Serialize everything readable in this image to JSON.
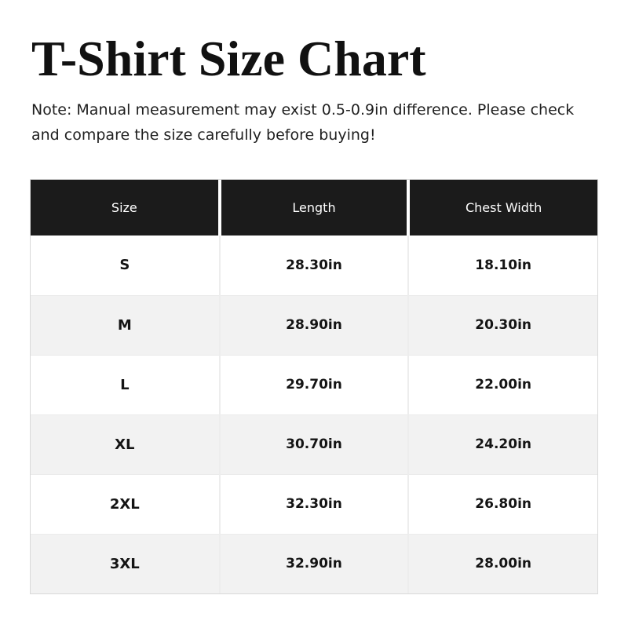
{
  "header": {
    "title": "T-Shirt Size Chart",
    "note": "Note: Manual measurement may exist 0.5-0.9in difference. Please check and compare the size carefully before buying!"
  },
  "table": {
    "columns": [
      "Size",
      "Length",
      "Chest Width"
    ],
    "rows": [
      [
        "S",
        "28.30in",
        "18.10in"
      ],
      [
        "M",
        "28.90in",
        "20.30in"
      ],
      [
        "L",
        "29.70in",
        "22.00in"
      ],
      [
        "XL",
        "30.70in",
        "24.20in"
      ],
      [
        "2XL",
        "32.30in",
        "26.80in"
      ],
      [
        "3XL",
        "32.90in",
        "28.00in"
      ]
    ]
  },
  "chart_data": {
    "type": "table",
    "title": "T-Shirt Size Chart",
    "note": "Note: Manual measurement may exist 0.5-0.9in difference. Please check and compare the size carefully before buying!",
    "columns": [
      "Size",
      "Length",
      "Chest Width"
    ],
    "rows": [
      {
        "size": "S",
        "length_in": 28.3,
        "chest_width_in": 18.1
      },
      {
        "size": "M",
        "length_in": 28.9,
        "chest_width_in": 20.3
      },
      {
        "size": "L",
        "length_in": 29.7,
        "chest_width_in": 22.0
      },
      {
        "size": "XL",
        "length_in": 30.7,
        "chest_width_in": 24.2
      },
      {
        "size": "2XL",
        "length_in": 32.3,
        "chest_width_in": 26.8
      },
      {
        "size": "3XL",
        "length_in": 32.9,
        "chest_width_in": 28.0
      }
    ],
    "units": "in",
    "layout_hints": {
      "header_style": "dark-inverse",
      "row_striping": "white / light-gray alternating",
      "alignment": "center"
    }
  },
  "colors": {
    "header_bg": "#1b1b1b",
    "header_text": "#ffffff",
    "row_bg": "#ffffff",
    "row_alt_bg": "#f2f2f2",
    "table_border": "#d9d9d9",
    "body_text": "#141414"
  }
}
